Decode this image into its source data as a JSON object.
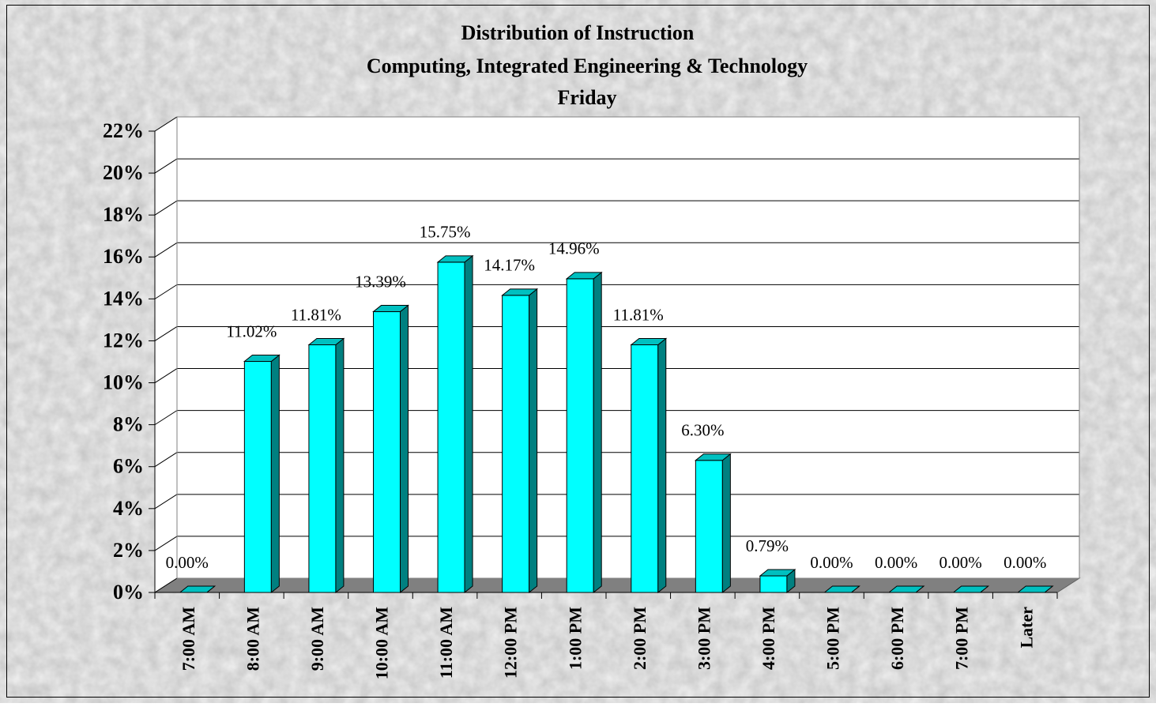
{
  "chart_data": {
    "type": "bar",
    "title": "Distribution of Instruction",
    "subtitle": [
      "Computing, Integrated Engineering & Technology",
      "Friday"
    ],
    "categories": [
      "7:00 AM",
      "8:00 AM",
      "9:00 AM",
      "10:00 AM",
      "11:00 AM",
      "12:00 PM",
      "1:00 PM",
      "2:00 PM",
      "3:00 PM",
      "4:00 PM",
      "5:00 PM",
      "6:00 PM",
      "7:00 PM",
      "Later"
    ],
    "values": [
      0,
      11.02,
      11.81,
      13.39,
      15.75,
      14.17,
      14.96,
      11.81,
      6.3,
      0.79,
      0,
      0,
      0,
      0
    ],
    "value_labels": [
      "0.00%",
      "11.02%",
      "11.81%",
      "13.39%",
      "15.75%",
      "14.17%",
      "14.96%",
      "11.81%",
      "6.30%",
      "0.79%",
      "0.00%",
      "0.00%",
      "0.00%",
      "0.00%"
    ],
    "color": "#00ffff",
    "ylim": [
      0,
      22
    ],
    "yticks": [
      {
        "value": 0,
        "label": "0%"
      },
      {
        "value": 2,
        "label": "2%"
      },
      {
        "value": 4,
        "label": "4%"
      },
      {
        "value": 6,
        "label": "6%"
      },
      {
        "value": 8,
        "label": "8%"
      },
      {
        "value": 10,
        "label": "10%"
      },
      {
        "value": 12,
        "label": "12%"
      },
      {
        "value": 14,
        "label": "14%"
      },
      {
        "value": 16,
        "label": "16%"
      },
      {
        "value": 18,
        "label": "18%"
      },
      {
        "value": 20,
        "label": "20%"
      },
      {
        "value": 22,
        "label": "22%"
      }
    ],
    "grid": true
  }
}
